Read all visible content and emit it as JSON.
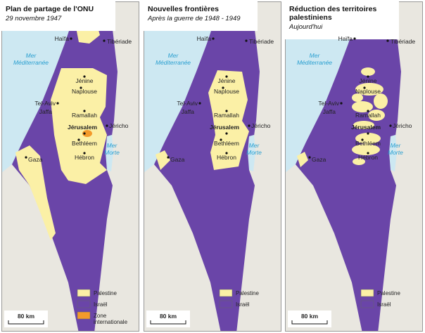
{
  "panels": [
    {
      "title": [
        "Plan de partage de l'ONU"
      ],
      "subtitle": "29 novembre 1947",
      "labels": [
        "Haïfa",
        "Tibériade",
        [
          "Mer",
          "Méditerranée"
        ],
        "Jénine",
        "Naplouse",
        "Tel-Aviv",
        "Jaffa",
        "Ramallah",
        "Jérusalem",
        "Jéricho",
        "Bethléem",
        [
          "Mer",
          "Morte"
        ],
        "Hébron",
        "Gaza"
      ],
      "legend": [
        "Palestine",
        "Israël",
        [
          "Zone",
          "internationale"
        ]
      ],
      "scale": "80 km"
    },
    {
      "title": [
        "Nouvelles frontières"
      ],
      "subtitle": "Après la guerre de 1948 - 1949",
      "labels": [
        "Haïfa",
        "Tibériade",
        [
          "Mer",
          "Méditerranée"
        ],
        "Jénine",
        "Naplouse",
        "Tel-Aviv",
        "Jaffa",
        "Ramallah",
        "Jérusalem",
        "Jéricho",
        "Bethléem",
        [
          "Mer",
          "Morte"
        ],
        "Hébron",
        "Gaza"
      ],
      "legend": [
        "Palestine",
        "Israël"
      ],
      "scale": "80 km"
    },
    {
      "title": [
        "Réduction des territoires",
        "palestiniens"
      ],
      "subtitle": "Aujourd'hui",
      "labels": [
        "Haïfa",
        "Tibériade",
        [
          "Mer",
          "Méditerranée"
        ],
        "Jénine",
        "Naplouse",
        "Tel-Aviv",
        "Jaffa",
        "Ramallah",
        "Jérusalem",
        "Jéricho",
        "Bethléem",
        [
          "Mer",
          "Morte"
        ],
        "Hébron",
        "Gaza"
      ],
      "legend": [
        "Palestine",
        "Israël"
      ],
      "scale": "80 km"
    }
  ]
}
